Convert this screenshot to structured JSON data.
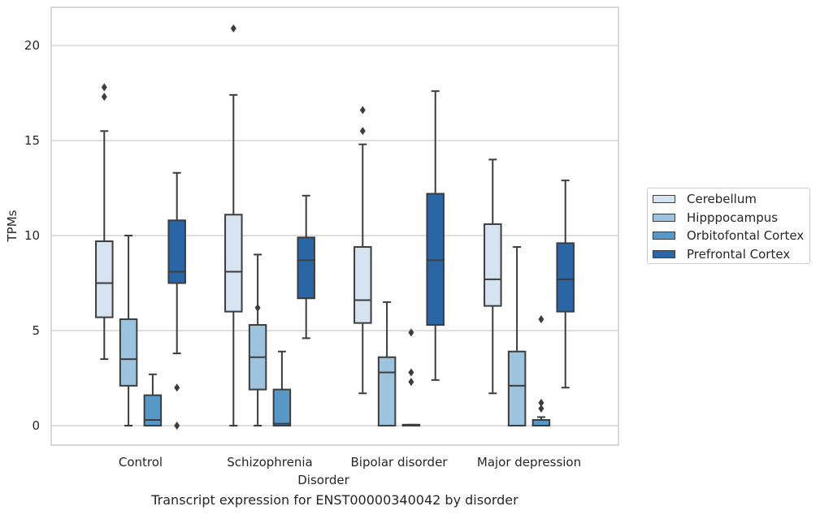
{
  "caption": "Transcript expression for ENST00000340042 by disorder",
  "chart_data": {
    "type": "box",
    "xlabel": "Disorder",
    "ylabel": "TPMs",
    "ylim": [
      -1,
      22
    ],
    "yticks": [
      0,
      5,
      10,
      15,
      20
    ],
    "grid": "horizontal",
    "legend_placement": "right",
    "categories": [
      "Control",
      "Schizophrenia",
      "Bipolar disorder",
      "Major depression"
    ],
    "series": [
      {
        "name": "Cerebellum",
        "color": "#d6e4f2",
        "boxes": [
          {
            "whisker_low": 3.5,
            "q1": 5.7,
            "median": 7.5,
            "q3": 9.7,
            "whisker_high": 15.5,
            "outliers": [
              17.3,
              17.8
            ]
          },
          {
            "whisker_low": 0.0,
            "q1": 6.0,
            "median": 8.1,
            "q3": 11.1,
            "whisker_high": 17.4,
            "outliers": [
              20.9
            ]
          },
          {
            "whisker_low": 1.7,
            "q1": 5.4,
            "median": 6.6,
            "q3": 9.4,
            "whisker_high": 14.8,
            "outliers": [
              15.5,
              16.6
            ]
          },
          {
            "whisker_low": 1.7,
            "q1": 6.3,
            "median": 7.7,
            "q3": 10.6,
            "whisker_high": 14.0,
            "outliers": []
          }
        ]
      },
      {
        "name": "Hipppocampus",
        "color": "#9dc3de",
        "boxes": [
          {
            "whisker_low": 0.0,
            "q1": 2.1,
            "median": 3.5,
            "q3": 5.6,
            "whisker_high": 10.0,
            "outliers": []
          },
          {
            "whisker_low": 0.0,
            "q1": 1.9,
            "median": 3.6,
            "q3": 5.3,
            "whisker_high": 9.0,
            "outliers": [
              6.2
            ]
          },
          {
            "whisker_low": 0.0,
            "q1": 0.0,
            "median": 2.8,
            "q3": 3.6,
            "whisker_high": 6.5,
            "outliers": []
          },
          {
            "whisker_low": 0.0,
            "q1": 0.0,
            "median": 2.1,
            "q3": 3.9,
            "whisker_high": 9.4,
            "outliers": []
          }
        ]
      },
      {
        "name": "Orbitofontal Cortex",
        "color": "#5898c6",
        "boxes": [
          {
            "whisker_low": 0.0,
            "q1": 0.0,
            "median": 0.3,
            "q3": 1.6,
            "whisker_high": 2.7,
            "outliers": []
          },
          {
            "whisker_low": 0.0,
            "q1": 0.0,
            "median": 0.1,
            "q3": 1.9,
            "whisker_high": 3.9,
            "outliers": []
          },
          {
            "whisker_low": 0.0,
            "q1": 0.0,
            "median": 0.0,
            "q3": 0.05,
            "whisker_high": 0.05,
            "outliers": [
              2.3,
              2.8,
              4.9
            ]
          },
          {
            "whisker_low": 0.0,
            "q1": 0.0,
            "median": 0.0,
            "q3": 0.3,
            "whisker_high": 0.45,
            "outliers": [
              0.9,
              1.2,
              5.6
            ]
          }
        ]
      },
      {
        "name": "Prefrontal Cortex",
        "color": "#2a65a5",
        "boxes": [
          {
            "whisker_low": 3.8,
            "q1": 7.5,
            "median": 8.1,
            "q3": 10.8,
            "whisker_high": 13.3,
            "outliers": [
              0.0,
              2.0
            ]
          },
          {
            "whisker_low": 4.6,
            "q1": 6.7,
            "median": 8.7,
            "q3": 9.9,
            "whisker_high": 12.1,
            "outliers": []
          },
          {
            "whisker_low": 2.4,
            "q1": 5.3,
            "median": 8.7,
            "q3": 12.2,
            "whisker_high": 17.6,
            "outliers": []
          },
          {
            "whisker_low": 2.0,
            "q1": 6.0,
            "median": 7.7,
            "q3": 9.6,
            "whisker_high": 12.9,
            "outliers": []
          }
        ]
      }
    ]
  }
}
